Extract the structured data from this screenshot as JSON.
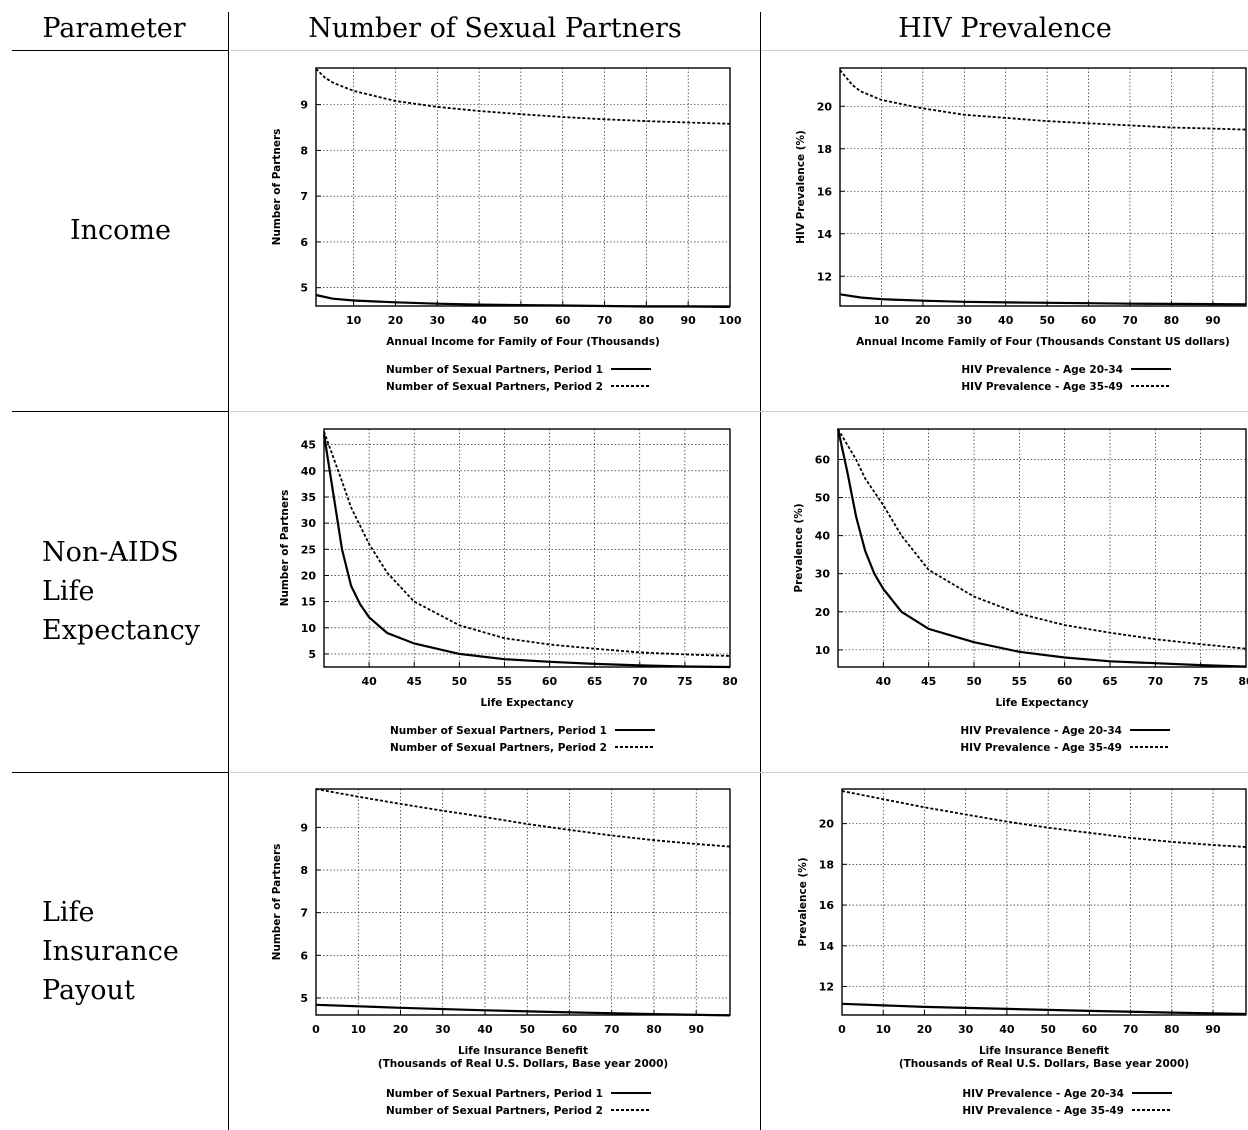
{
  "headers": {
    "parameter": "Parameter",
    "partners": "Number of Sexual Partners",
    "hiv": "HIV Prevalence"
  },
  "rows": [
    {
      "label_lines": [
        "Income"
      ]
    },
    {
      "label_lines": [
        "Non-AIDS",
        "Life",
        "Expectancy"
      ]
    },
    {
      "label_lines": [
        "Life",
        "Insurance",
        "Payout"
      ]
    }
  ],
  "chart_data": [
    {
      "type": "line",
      "xlabel": "Annual Income for Family of Four (Thousands)",
      "ylabel": "Number of Partners",
      "xlim": [
        1,
        100
      ],
      "ylim": [
        4.6,
        9.8
      ],
      "xticks": [
        10,
        20,
        30,
        40,
        50,
        60,
        70,
        80,
        90,
        100
      ],
      "yticks": [
        5,
        6,
        7,
        8,
        9
      ],
      "grid": true,
      "legend_position": "below",
      "series": [
        {
          "name": "Number of Sexual Partners, Period 1",
          "style": "solid",
          "points": [
            [
              1,
              4.84
            ],
            [
              5,
              4.76
            ],
            [
              10,
              4.72
            ],
            [
              20,
              4.68
            ],
            [
              30,
              4.65
            ],
            [
              40,
              4.63
            ],
            [
              50,
              4.62
            ],
            [
              60,
              4.61
            ],
            [
              70,
              4.6
            ],
            [
              80,
              4.59
            ],
            [
              90,
              4.59
            ],
            [
              100,
              4.58
            ]
          ]
        },
        {
          "name": "Number of Sexual Partners, Period 2",
          "style": "dashed",
          "points": [
            [
              1,
              9.78
            ],
            [
              3,
              9.6
            ],
            [
              5,
              9.48
            ],
            [
              10,
              9.3
            ],
            [
              20,
              9.08
            ],
            [
              30,
              8.95
            ],
            [
              40,
              8.86
            ],
            [
              50,
              8.79
            ],
            [
              60,
              8.73
            ],
            [
              70,
              8.68
            ],
            [
              80,
              8.64
            ],
            [
              90,
              8.61
            ],
            [
              100,
              8.58
            ]
          ]
        }
      ]
    },
    {
      "type": "line",
      "xlabel": "Annual Income Family of Four (Thousands Constant US dollars)",
      "ylabel": "HIV Prevalence (%)",
      "xlim": [
        0,
        98
      ],
      "ylim": [
        10.6,
        21.8
      ],
      "xticks": [
        10,
        20,
        30,
        40,
        50,
        60,
        70,
        80,
        90
      ],
      "yticks": [
        12,
        14,
        16,
        18,
        20
      ],
      "grid": true,
      "legend_position": "below",
      "series": [
        {
          "name": "HIV Prevalence - Age 20-34",
          "style": "solid",
          "points": [
            [
              0,
              11.15
            ],
            [
              5,
              11.0
            ],
            [
              10,
              10.92
            ],
            [
              20,
              10.85
            ],
            [
              30,
              10.8
            ],
            [
              40,
              10.77
            ],
            [
              50,
              10.75
            ],
            [
              60,
              10.73
            ],
            [
              70,
              10.71
            ],
            [
              80,
              10.7
            ],
            [
              90,
              10.69
            ],
            [
              98,
              10.68
            ]
          ]
        },
        {
          "name": "HIV Prevalence - Age 35-49",
          "style": "dashed",
          "points": [
            [
              0,
              21.7
            ],
            [
              3,
              21.0
            ],
            [
              5,
              20.7
            ],
            [
              10,
              20.3
            ],
            [
              20,
              19.9
            ],
            [
              30,
              19.6
            ],
            [
              40,
              19.45
            ],
            [
              50,
              19.3
            ],
            [
              60,
              19.2
            ],
            [
              70,
              19.1
            ],
            [
              80,
              19.0
            ],
            [
              90,
              18.95
            ],
            [
              98,
              18.9
            ]
          ]
        }
      ]
    },
    {
      "type": "line",
      "xlabel": "Life Expectancy",
      "ylabel": "Number of Partners",
      "xlim": [
        35,
        80
      ],
      "ylim": [
        2.5,
        48
      ],
      "xticks": [
        40,
        45,
        50,
        55,
        60,
        65,
        70,
        75,
        80
      ],
      "yticks": [
        5,
        10,
        15,
        20,
        25,
        30,
        35,
        40,
        45
      ],
      "grid": true,
      "legend_position": "below",
      "series": [
        {
          "name": "Number of Sexual Partners, Period 1",
          "style": "solid",
          "points": [
            [
              35,
              47
            ],
            [
              36,
              36
            ],
            [
              37,
              25
            ],
            [
              38,
              18
            ],
            [
              39,
              14.5
            ],
            [
              40,
              12
            ],
            [
              42,
              9
            ],
            [
              45,
              7
            ],
            [
              50,
              5
            ],
            [
              55,
              4
            ],
            [
              60,
              3.5
            ],
            [
              65,
              3.1
            ],
            [
              70,
              2.8
            ],
            [
              75,
              2.6
            ],
            [
              80,
              2.5
            ]
          ]
        },
        {
          "name": "Number of Sexual Partners, Period 2",
          "style": "dashed",
          "points": [
            [
              35,
              47.5
            ],
            [
              37,
              38
            ],
            [
              38,
              33
            ],
            [
              40,
              26
            ],
            [
              42,
              20.5
            ],
            [
              45,
              15
            ],
            [
              50,
              10.5
            ],
            [
              55,
              8
            ],
            [
              60,
              6.8
            ],
            [
              65,
              6
            ],
            [
              70,
              5.3
            ],
            [
              75,
              4.9
            ],
            [
              80,
              4.6
            ]
          ]
        }
      ]
    },
    {
      "type": "line",
      "xlabel": "Life Expectancy",
      "ylabel": "Prevalence (%)",
      "xlim": [
        35,
        80
      ],
      "ylim": [
        5.5,
        68
      ],
      "xticks": [
        40,
        45,
        50,
        55,
        60,
        65,
        70,
        75,
        80
      ],
      "yticks": [
        10,
        20,
        30,
        40,
        50,
        60
      ],
      "grid": true,
      "legend_position": "below",
      "series": [
        {
          "name": "HIV Prevalence - Age 20-34",
          "style": "solid",
          "points": [
            [
              35,
              68
            ],
            [
              36,
              57
            ],
            [
              37,
              45
            ],
            [
              38,
              36
            ],
            [
              39,
              30
            ],
            [
              40,
              26
            ],
            [
              42,
              20
            ],
            [
              45,
              15.5
            ],
            [
              50,
              12
            ],
            [
              55,
              9.5
            ],
            [
              60,
              8
            ],
            [
              65,
              7
            ],
            [
              70,
              6.5
            ],
            [
              75,
              6
            ],
            [
              80,
              5.6
            ]
          ]
        },
        {
          "name": "HIV Prevalence - Age 35-49",
          "style": "dashed",
          "points": [
            [
              35,
              68
            ],
            [
              37,
              60
            ],
            [
              38,
              55
            ],
            [
              40,
              48
            ],
            [
              42,
              40
            ],
            [
              45,
              31
            ],
            [
              50,
              24
            ],
            [
              55,
              19.5
            ],
            [
              60,
              16.5
            ],
            [
              65,
              14.5
            ],
            [
              70,
              12.8
            ],
            [
              75,
              11.5
            ],
            [
              80,
              10.3
            ]
          ]
        }
      ]
    },
    {
      "type": "line",
      "xlabel": "Life Insurance Benefit",
      "xlabel2": "(Thousands of Real U.S. Dollars, Base year 2000)",
      "ylabel": "Number of Partners",
      "xlim": [
        0,
        98
      ],
      "ylim": [
        4.6,
        9.9
      ],
      "xticks": [
        0,
        10,
        20,
        30,
        40,
        50,
        60,
        70,
        80,
        90
      ],
      "yticks": [
        5,
        6,
        7,
        8,
        9
      ],
      "grid": true,
      "legend_position": "below",
      "series": [
        {
          "name": "Number of Sexual Partners, Period 1",
          "style": "solid",
          "points": [
            [
              0,
              4.84
            ],
            [
              20,
              4.77
            ],
            [
              40,
              4.71
            ],
            [
              60,
              4.66
            ],
            [
              80,
              4.62
            ],
            [
              98,
              4.59
            ]
          ]
        },
        {
          "name": "Number of Sexual Partners, Period 2",
          "style": "dashed",
          "points": [
            [
              0,
              9.9
            ],
            [
              10,
              9.72
            ],
            [
              20,
              9.55
            ],
            [
              30,
              9.39
            ],
            [
              40,
              9.24
            ],
            [
              50,
              9.08
            ],
            [
              60,
              8.94
            ],
            [
              70,
              8.81
            ],
            [
              80,
              8.7
            ],
            [
              90,
              8.61
            ],
            [
              98,
              8.55
            ]
          ]
        }
      ]
    },
    {
      "type": "line",
      "xlabel": "Life Insurance Benefit",
      "xlabel2": "(Thousands of Real U.S. Dollars, Base year 2000)",
      "ylabel": "Prevalence (%)",
      "xlim": [
        0,
        98
      ],
      "ylim": [
        10.6,
        21.7
      ],
      "xticks": [
        0,
        10,
        20,
        30,
        40,
        50,
        60,
        70,
        80,
        90
      ],
      "yticks": [
        12,
        14,
        16,
        18,
        20
      ],
      "grid": true,
      "legend_position": "below",
      "series": [
        {
          "name": "HIV Prevalence - Age 20-34",
          "style": "solid",
          "points": [
            [
              0,
              11.15
            ],
            [
              20,
              11.0
            ],
            [
              40,
              10.9
            ],
            [
              60,
              10.8
            ],
            [
              80,
              10.72
            ],
            [
              98,
              10.65
            ]
          ]
        },
        {
          "name": "HIV Prevalence - Age 35-49",
          "style": "dashed",
          "points": [
            [
              0,
              21.6
            ],
            [
              10,
              21.2
            ],
            [
              20,
              20.8
            ],
            [
              30,
              20.45
            ],
            [
              40,
              20.1
            ],
            [
              50,
              19.8
            ],
            [
              60,
              19.55
            ],
            [
              70,
              19.3
            ],
            [
              80,
              19.1
            ],
            [
              90,
              18.95
            ],
            [
              98,
              18.85
            ]
          ]
        }
      ]
    }
  ]
}
